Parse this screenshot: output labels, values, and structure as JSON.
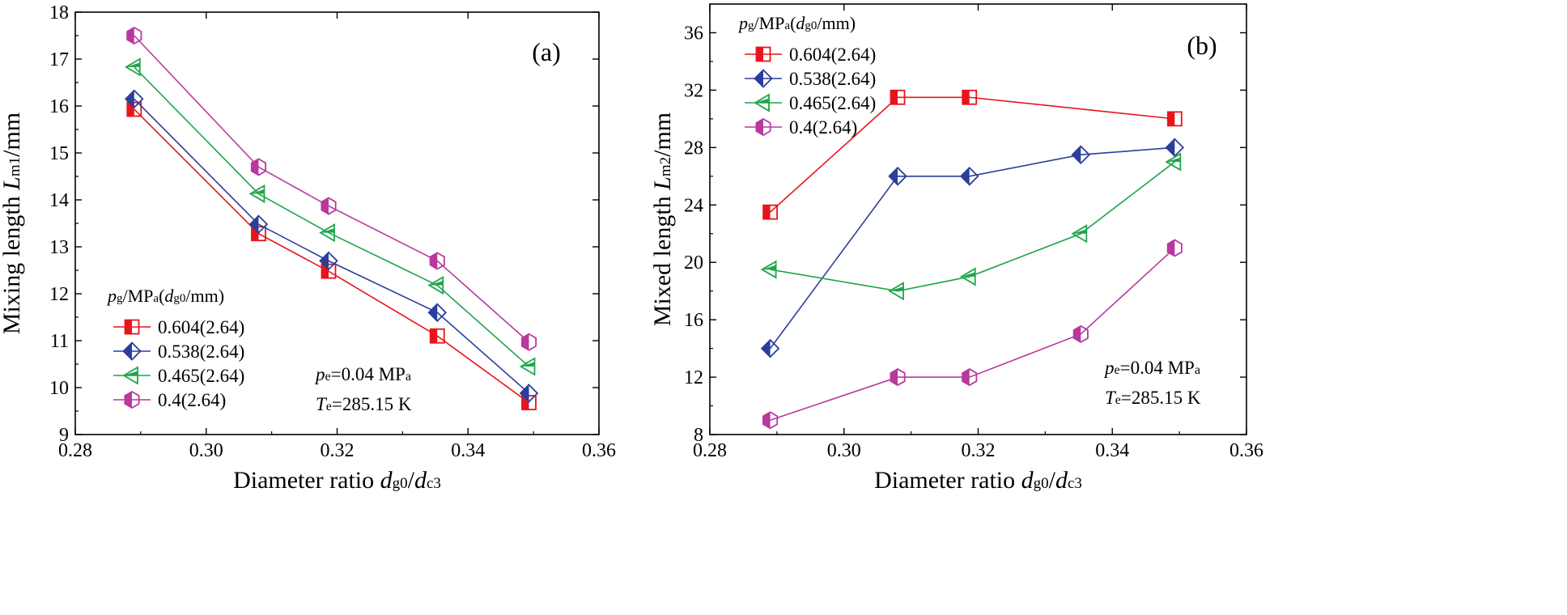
{
  "chart_data": [
    {
      "type": "line",
      "panel_label": "(a)",
      "xlabel": {
        "main": "Diameter ratio ",
        "v1": "d",
        "s1": "g0",
        "slash": "/",
        "v2": "d",
        "s2": "c3"
      },
      "ylabel": {
        "main": "Mixing length ",
        "v": "L",
        "s": "m1",
        "unit": "/mm"
      },
      "xlim": [
        0.28,
        0.36
      ],
      "ylim": [
        9,
        18
      ],
      "xticks": [
        "0.28",
        "0.30",
        "0.32",
        "0.34",
        "0.36"
      ],
      "yticks": [
        "9",
        "10",
        "11",
        "12",
        "13",
        "14",
        "15",
        "16",
        "17",
        "18"
      ],
      "legend": {
        "title": {
          "v": "p",
          "s": "g",
          "mid": "/MP",
          "s2": "a",
          "open": "(",
          "v2": "d",
          "s3": "g0",
          "close": "/mm)"
        },
        "location": "lower-left"
      },
      "annotation": {
        "line1": {
          "v": "p",
          "s": "e",
          "rest": "=0.04 MP",
          "s2": "a"
        },
        "line2": {
          "v": "T",
          "s": "e",
          "rest": "=285.15 K"
        }
      },
      "x": [
        0.289,
        0.308,
        0.3187,
        0.3353,
        0.3493
      ],
      "series": [
        {
          "name": "0.604(2.64)",
          "color": "#e8141c",
          "marker": "square-half",
          "values": [
            15.93,
            13.28,
            12.48,
            11.1,
            9.68
          ]
        },
        {
          "name": "0.538(2.64)",
          "color": "#2b3e9b",
          "marker": "diamond-half",
          "values": [
            16.15,
            13.48,
            12.7,
            11.6,
            9.88
          ]
        },
        {
          "name": "0.465(2.64)",
          "color": "#1fa54a",
          "marker": "triangle-half",
          "values": [
            16.83,
            14.13,
            13.3,
            12.18,
            10.45
          ]
        },
        {
          "name": "0.4(2.64)",
          "color": "#b8389e",
          "marker": "hexagon-half",
          "values": [
            17.5,
            14.7,
            13.87,
            12.7,
            10.97
          ]
        }
      ]
    },
    {
      "type": "line",
      "panel_label": "(b)",
      "xlabel": {
        "main": "Diameter ratio ",
        "v1": "d",
        "s1": "g0",
        "slash": "/",
        "v2": "d",
        "s2": "c3"
      },
      "ylabel": {
        "main": "Mixed length ",
        "v": "L",
        "s": "m2",
        "unit": "/mm"
      },
      "xlim": [
        0.28,
        0.36
      ],
      "ylim": [
        8,
        38
      ],
      "xticks": [
        "0.28",
        "0.30",
        "0.32",
        "0.34",
        "0.36"
      ],
      "yticks": [
        "8",
        "12",
        "16",
        "20",
        "24",
        "28",
        "32",
        "36"
      ],
      "legend": {
        "title": {
          "v": "p",
          "s": "g",
          "mid": "/MP",
          "s2": "a",
          "open": "(",
          "v2": "d",
          "s3": "g0",
          "close": "/mm)"
        },
        "location": "top-left"
      },
      "annotation": {
        "line1": {
          "v": "p",
          "s": "e",
          "rest": "=0.04 MP",
          "s2": "a"
        },
        "line2": {
          "v": "T",
          "s": "e",
          "rest": "=285.15 K"
        }
      },
      "x": [
        0.289,
        0.308,
        0.3187,
        0.3353,
        0.3493
      ],
      "series": [
        {
          "name": "0.604(2.64)",
          "color": "#e8141c",
          "marker": "square-half",
          "values": [
            23.5,
            31.5,
            31.5,
            null,
            30.0
          ]
        },
        {
          "name": "0.538(2.64)",
          "color": "#2b3e9b",
          "marker": "diamond-half",
          "values": [
            14.0,
            26.0,
            26.0,
            27.5,
            28.0
          ]
        },
        {
          "name": "0.465(2.64)",
          "color": "#1fa54a",
          "marker": "triangle-half",
          "values": [
            19.5,
            18.0,
            19.0,
            22.0,
            27.0
          ]
        },
        {
          "name": "0.4(2.64)",
          "color": "#b8389e",
          "marker": "hexagon-half",
          "values": [
            9.0,
            12.0,
            12.0,
            15.0,
            21.0
          ]
        }
      ]
    }
  ]
}
